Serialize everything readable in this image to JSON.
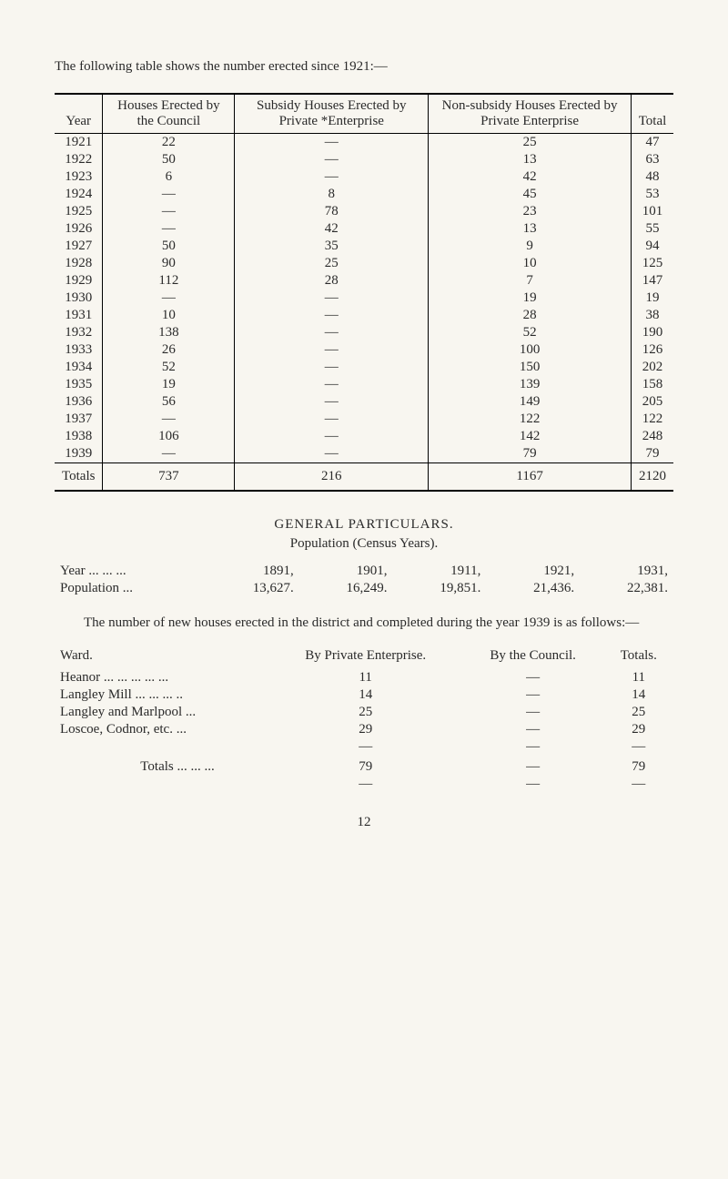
{
  "intro": "The following table shows the number erected since 1921:—",
  "table1": {
    "headers": [
      "Year",
      "Houses Erected by the Council",
      "Subsidy Houses Erected by Private *Enterprise",
      "Non-subsidy Houses Erected by Private Enterprise",
      "Total"
    ],
    "rows": [
      [
        "1921",
        "22",
        "—",
        "25",
        "47"
      ],
      [
        "1922",
        "50",
        "—",
        "13",
        "63"
      ],
      [
        "1923",
        "6",
        "—",
        "42",
        "48"
      ],
      [
        "1924",
        "—",
        "8",
        "45",
        "53"
      ],
      [
        "1925",
        "—",
        "78",
        "23",
        "101"
      ],
      [
        "1926",
        "—",
        "42",
        "13",
        "55"
      ],
      [
        "1927",
        "50",
        "35",
        "9",
        "94"
      ],
      [
        "1928",
        "90",
        "25",
        "10",
        "125"
      ],
      [
        "1929",
        "112",
        "28",
        "7",
        "147"
      ],
      [
        "1930",
        "—",
        "—",
        "19",
        "19"
      ],
      [
        "1931",
        "10",
        "—",
        "28",
        "38"
      ],
      [
        "1932",
        "138",
        "—",
        "52",
        "190"
      ],
      [
        "1933",
        "26",
        "—",
        "100",
        "126"
      ],
      [
        "1934",
        "52",
        "—",
        "150",
        "202"
      ],
      [
        "1935",
        "19",
        "—",
        "139",
        "158"
      ],
      [
        "1936",
        "56",
        "—",
        "149",
        "205"
      ],
      [
        "1937",
        "—",
        "—",
        "122",
        "122"
      ],
      [
        "1938",
        "106",
        "—",
        "142",
        "248"
      ],
      [
        "1939",
        "—",
        "—",
        "79",
        "79"
      ]
    ],
    "totals": [
      "Totals",
      "737",
      "216",
      "1167",
      "2120"
    ]
  },
  "section_title": "GENERAL PARTICULARS.",
  "subtitle": "Population (Census Years).",
  "pop": {
    "row_labels": [
      "Year   ... ... ...",
      "Population   ..."
    ],
    "years": [
      "1891,",
      "1901,",
      "1911,",
      "1921,",
      "1931,"
    ],
    "values": [
      "13,627.",
      "16,249.",
      "19,851.",
      "21,436.",
      "22,381."
    ]
  },
  "para": "The number of new houses erected in the district and completed during the year 1939 is as follows:—",
  "ward": {
    "headers": [
      "Ward.",
      "By Private Enterprise.",
      "By the Council.",
      "Totals."
    ],
    "rows": [
      [
        "Heanor ... ... ... ... ...",
        "11",
        "—",
        "11"
      ],
      [
        "Langley Mill ... ... ... ..",
        "14",
        "—",
        "14"
      ],
      [
        "Langley and Marlpool ...",
        "25",
        "—",
        "25"
      ],
      [
        "Loscoe, Codnor, etc. ...",
        "29",
        "—",
        "29"
      ]
    ],
    "dashrow": [
      "",
      "—",
      "—",
      "—"
    ],
    "totals": [
      "Totals ... ... ...",
      "79",
      "—",
      "79"
    ],
    "dashrow2": [
      "",
      "—",
      "—",
      "—"
    ]
  },
  "page_num": "12"
}
